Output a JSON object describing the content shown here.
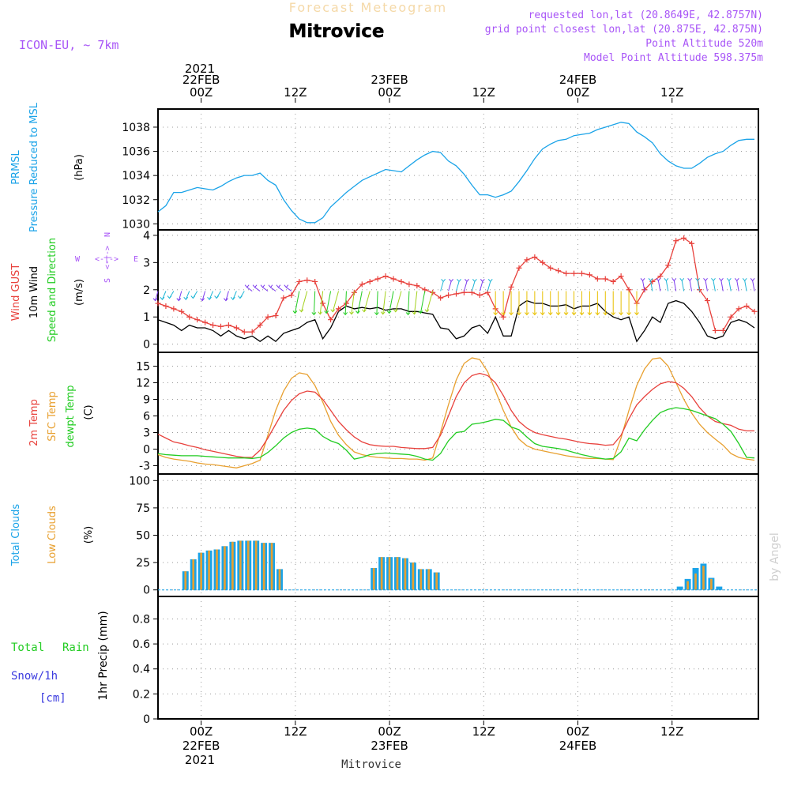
{
  "header": {
    "product": "Forecast Meteogram",
    "station": "Mitrovice",
    "model": "ICON-EU, ~ 7km",
    "requested": "requested lon,lat (20.8649E, 42.8757N)",
    "grid": "grid point closest lon,lat (20.875E, 42.875N)",
    "altitude": "Point Altitude 520m",
    "model_altitude": "Model Point Altitude 598.375m",
    "watermark": "by Angel",
    "footer": "Mitrovice"
  },
  "colors": {
    "pressure": "#1aa3e8",
    "gust": "#e8413c",
    "wind": "#000000",
    "temp2m": "#e8413c",
    "sfc": "#e8a030",
    "dewpt": "#22cc22",
    "total_clouds": "#1aa3e8",
    "low_clouds": "#e8a030",
    "header_purple": "#a855f7",
    "precip_green": "#22cc22",
    "precip_blue": "#3b3bdf"
  },
  "time_axis": {
    "top": {
      "year": "2021",
      "ticks": [
        {
          "t": 0,
          "label": "00Z",
          "date": "22FEB"
        },
        {
          "t": 12,
          "label": "12Z",
          "date": ""
        },
        {
          "t": 24,
          "label": "00Z",
          "date": "23FEB"
        },
        {
          "t": 36,
          "label": "12Z",
          "date": ""
        },
        {
          "t": 48,
          "label": "00Z",
          "date": "24FEB"
        },
        {
          "t": 60,
          "label": "12Z",
          "date": ""
        }
      ]
    },
    "bottom": {
      "year": "2021",
      "ticks": [
        {
          "t": 0,
          "label": "00Z",
          "date": "22FEB"
        },
        {
          "t": 12,
          "label": "12Z",
          "date": ""
        },
        {
          "t": 24,
          "label": "00Z",
          "date": "23FEB"
        },
        {
          "t": 36,
          "label": "12Z",
          "date": ""
        },
        {
          "t": 48,
          "label": "00Z",
          "date": "24FEB"
        },
        {
          "t": 60,
          "label": "12Z",
          "date": ""
        }
      ]
    },
    "range_hours": [
      -5.5,
      71
    ]
  },
  "chart_data": [
    {
      "type": "line",
      "panel": "pressure",
      "labels": {
        "line1": "PRMSL",
        "line2": "Pressure Reduced to MSL",
        "unit": "(hPa)"
      },
      "ylim": [
        1029.5,
        1039.5
      ],
      "yticks": [
        1030,
        1032,
        1034,
        1036,
        1038
      ],
      "series": [
        {
          "name": "PRMSL",
          "x": [
            -5.5,
            -4.5,
            -3.5,
            -2.5,
            -1.5,
            -0.5,
            0.5,
            1.5,
            2.5,
            3.5,
            4.5,
            5.5,
            6.5,
            7.5,
            8.5,
            9.5,
            10.5,
            11.5,
            12.5,
            13.5,
            14.5,
            15.5,
            16.5,
            17.5,
            18.5,
            19.5,
            20.5,
            21.5,
            22.5,
            23.5,
            24.5,
            25.5,
            26.5,
            27.5,
            28.5,
            29.5,
            30.5,
            31.5,
            32.5,
            33.5,
            34.5,
            35.5,
            36.5,
            37.5,
            38.5,
            39.5,
            40.5,
            41.5,
            42.5,
            43.5,
            44.5,
            45.5,
            46.5,
            47.5,
            48.5,
            49.5,
            50.5,
            51.5,
            52.5,
            53.5,
            54.5,
            55.5,
            56.5,
            57.5,
            58.5,
            59.5,
            60.5,
            61.5,
            62.5,
            63.5,
            64.5,
            65.5,
            66.5,
            67.5,
            68.5,
            69.5,
            70.5
          ],
          "y": [
            1031.0,
            1031.5,
            1032.6,
            1032.6,
            1032.8,
            1033.0,
            1032.9,
            1032.8,
            1033.1,
            1033.5,
            1033.8,
            1034.0,
            1034.0,
            1034.2,
            1033.6,
            1033.2,
            1032.0,
            1031.1,
            1030.4,
            1030.1,
            1030.1,
            1030.5,
            1031.4,
            1032.0,
            1032.6,
            1033.1,
            1033.6,
            1033.9,
            1034.2,
            1034.5,
            1034.4,
            1034.3,
            1034.8,
            1035.3,
            1035.7,
            1036.0,
            1035.9,
            1035.2,
            1034.8,
            1034.1,
            1033.2,
            1032.4,
            1032.4,
            1032.2,
            1032.4,
            1032.7,
            1033.5,
            1034.4,
            1035.4,
            1036.2,
            1036.6,
            1036.9,
            1037.0,
            1037.3,
            1037.4,
            1037.5,
            1037.8,
            1038.0,
            1038.2,
            1038.4,
            1038.3,
            1037.6,
            1037.2,
            1036.7,
            1035.8,
            1035.2,
            1034.8,
            1034.6,
            1034.6,
            1035.0,
            1035.5,
            1035.8,
            1036.0,
            1036.5,
            1036.9,
            1037.0,
            1037.0
          ]
        }
      ]
    },
    {
      "type": "line",
      "panel": "wind",
      "labels": {
        "gust": "Wind GUST",
        "wind": "10m Wind",
        "dir": "Speed and Direction",
        "unit": "(m/s)",
        "compass_n": "N",
        "compass_s": "S",
        "compass_w": "W",
        "compass_e": "E",
        "compass_mid": "<-|->"
      },
      "ylim": [
        -0.3,
        4.2
      ],
      "yticks": [
        0,
        1,
        2,
        3,
        4
      ],
      "x": [
        -5.5,
        -4.5,
        -3.5,
        -2.5,
        -1.5,
        -0.5,
        0.5,
        1.5,
        2.5,
        3.5,
        4.5,
        5.5,
        6.5,
        7.5,
        8.5,
        9.5,
        10.5,
        11.5,
        12.5,
        13.5,
        14.5,
        15.5,
        16.5,
        17.5,
        18.5,
        19.5,
        20.5,
        21.5,
        22.5,
        23.5,
        24.5,
        25.5,
        26.5,
        27.5,
        28.5,
        29.5,
        30.5,
        31.5,
        32.5,
        33.5,
        34.5,
        35.5,
        36.5,
        37.5,
        38.5,
        39.5,
        40.5,
        41.5,
        42.5,
        43.5,
        44.5,
        45.5,
        46.5,
        47.5,
        48.5,
        49.5,
        50.5,
        51.5,
        52.5,
        53.5,
        54.5,
        55.5,
        56.5,
        57.5,
        58.5,
        59.5,
        60.5,
        61.5,
        62.5,
        63.5,
        64.5,
        65.5,
        66.5,
        67.5,
        68.5,
        69.5,
        70.5
      ],
      "series": [
        {
          "name": "Wind GUST",
          "y": [
            1.5,
            1.4,
            1.3,
            1.2,
            1.0,
            0.9,
            0.8,
            0.7,
            0.65,
            0.7,
            0.6,
            0.45,
            0.45,
            0.7,
            1.0,
            1.05,
            1.7,
            1.8,
            2.3,
            2.35,
            2.3,
            1.5,
            0.9,
            1.3,
            1.5,
            1.9,
            2.2,
            2.3,
            2.4,
            2.5,
            2.4,
            2.3,
            2.2,
            2.15,
            2.0,
            1.9,
            1.7,
            1.8,
            1.85,
            1.9,
            1.9,
            1.8,
            1.9,
            1.3,
            1.0,
            2.1,
            2.8,
            3.1,
            3.2,
            3.0,
            2.8,
            2.7,
            2.6,
            2.6,
            2.6,
            2.55,
            2.4,
            2.4,
            2.3,
            2.5,
            2.0,
            1.5,
            2.0,
            2.3,
            2.5,
            2.9,
            3.8,
            3.9,
            3.7,
            2.0,
            1.6,
            0.5,
            0.5,
            1.0,
            1.3,
            1.4,
            1.2
          ]
        },
        {
          "name": "10m Wind",
          "y": [
            0.9,
            0.8,
            0.7,
            0.5,
            0.7,
            0.6,
            0.6,
            0.5,
            0.3,
            0.5,
            0.3,
            0.2,
            0.3,
            0.1,
            0.3,
            0.1,
            0.4,
            0.5,
            0.6,
            0.8,
            0.9,
            0.2,
            0.6,
            1.2,
            1.4,
            1.3,
            1.35,
            1.3,
            1.35,
            1.25,
            1.3,
            1.3,
            1.2,
            1.2,
            1.15,
            1.1,
            0.6,
            0.55,
            0.2,
            0.3,
            0.6,
            0.7,
            0.4,
            1.0,
            0.3,
            0.3,
            1.4,
            1.6,
            1.5,
            1.5,
            1.4,
            1.4,
            1.45,
            1.3,
            1.4,
            1.4,
            1.5,
            1.2,
            1.0,
            0.9,
            1.0,
            0.1,
            0.5,
            1.0,
            0.8,
            1.5,
            1.6,
            1.5,
            1.2,
            0.8,
            0.3,
            0.2,
            0.3,
            0.8,
            0.9,
            0.8,
            0.6
          ]
        }
      ]
    },
    {
      "type": "line",
      "panel": "temperature",
      "labels": {
        "t2m": "2m Temp",
        "sfc": "SFC Temp",
        "dewpt": "dewpt Temp",
        "unit": "(C)"
      },
      "ylim": [
        -4.5,
        17.5
      ],
      "yticks": [
        -3,
        0,
        3,
        6,
        9,
        12,
        15
      ],
      "x": [
        -5.5,
        -4.5,
        -3.5,
        -2.5,
        -1.5,
        -0.5,
        0.5,
        1.5,
        2.5,
        3.5,
        4.5,
        5.5,
        6.5,
        7.5,
        8.5,
        9.5,
        10.5,
        11.5,
        12.5,
        13.5,
        14.5,
        15.5,
        16.5,
        17.5,
        18.5,
        19.5,
        20.5,
        21.5,
        22.5,
        23.5,
        24.5,
        25.5,
        26.5,
        27.5,
        28.5,
        29.5,
        30.5,
        31.5,
        32.5,
        33.5,
        34.5,
        35.5,
        36.5,
        37.5,
        38.5,
        39.5,
        40.5,
        41.5,
        42.5,
        43.5,
        44.5,
        45.5,
        46.5,
        47.5,
        48.5,
        49.5,
        50.5,
        51.5,
        52.5,
        53.5,
        54.5,
        55.5,
        56.5,
        57.5,
        58.5,
        59.5,
        60.5,
        61.5,
        62.5,
        63.5,
        64.5,
        65.5,
        66.5,
        67.5,
        68.5,
        69.5,
        70.5
      ],
      "series": [
        {
          "name": "2m Temp",
          "y": [
            2.7,
            2.0,
            1.3,
            1.0,
            0.6,
            0.3,
            -0.1,
            -0.4,
            -0.7,
            -1.0,
            -1.3,
            -1.5,
            -1.5,
            -0.2,
            2.0,
            4.5,
            7.0,
            8.8,
            10.0,
            10.5,
            10.3,
            9.0,
            7.0,
            5.0,
            3.5,
            2.2,
            1.3,
            0.8,
            0.6,
            0.5,
            0.5,
            0.3,
            0.2,
            0.1,
            0.1,
            0.3,
            2.5,
            6.0,
            9.5,
            12.0,
            13.3,
            13.7,
            13.3,
            12.0,
            9.7,
            7.0,
            5.0,
            3.8,
            3.0,
            2.6,
            2.3,
            2.0,
            1.8,
            1.5,
            1.2,
            1.0,
            0.9,
            0.7,
            0.8,
            2.5,
            5.5,
            8.0,
            9.5,
            10.8,
            11.8,
            12.2,
            12.0,
            11.0,
            9.5,
            7.5,
            6.0,
            5.0,
            4.6,
            4.3,
            3.6,
            3.3,
            3.3
          ]
        },
        {
          "name": "SFC Temp",
          "y": [
            -1.0,
            -1.5,
            -1.8,
            -2.0,
            -2.2,
            -2.5,
            -2.7,
            -2.8,
            -3.0,
            -3.2,
            -3.4,
            -3.0,
            -2.6,
            -2.0,
            2.5,
            7.0,
            10.5,
            12.8,
            13.8,
            13.5,
            11.5,
            8.5,
            5.0,
            2.5,
            0.8,
            -0.5,
            -1.0,
            -1.3,
            -1.5,
            -1.6,
            -1.7,
            -1.7,
            -1.8,
            -1.8,
            -2.0,
            -1.6,
            3.0,
            8.0,
            12.5,
            15.5,
            16.5,
            16.2,
            14.0,
            10.5,
            7.0,
            4.0,
            1.8,
            0.6,
            0.0,
            -0.3,
            -0.6,
            -0.9,
            -1.2,
            -1.4,
            -1.6,
            -1.7,
            -1.7,
            -1.8,
            -1.9,
            2.0,
            7.0,
            11.5,
            14.5,
            16.3,
            16.5,
            15.0,
            12.0,
            9.0,
            6.5,
            4.5,
            3.0,
            1.8,
            0.7,
            -0.8,
            -1.5,
            -1.8,
            -2.0
          ]
        },
        {
          "name": "dewpt Temp",
          "y": [
            -0.8,
            -1.0,
            -1.1,
            -1.2,
            -1.2,
            -1.2,
            -1.3,
            -1.4,
            -1.5,
            -1.6,
            -1.6,
            -1.6,
            -1.7,
            -1.5,
            -0.6,
            0.6,
            2.0,
            3.0,
            3.6,
            3.8,
            3.6,
            2.3,
            1.5,
            1.0,
            -0.2,
            -1.8,
            -1.5,
            -1.0,
            -0.8,
            -0.7,
            -0.8,
            -0.9,
            -1.0,
            -1.3,
            -1.8,
            -2.0,
            -0.8,
            1.5,
            3.0,
            3.2,
            4.5,
            4.7,
            5.0,
            5.4,
            5.2,
            4.0,
            3.5,
            2.2,
            1.0,
            0.5,
            0.3,
            0.1,
            -0.2,
            -0.6,
            -1.0,
            -1.3,
            -1.6,
            -1.8,
            -1.7,
            -0.5,
            2.0,
            1.5,
            3.5,
            5.2,
            6.6,
            7.2,
            7.5,
            7.3,
            7.0,
            6.5,
            6.0,
            5.5,
            4.5,
            3.2,
            1.0,
            -1.5,
            -1.6
          ]
        }
      ]
    },
    {
      "type": "bar",
      "panel": "clouds",
      "labels": {
        "total": "Total Clouds",
        "low": "Low Clouds",
        "unit": "(%)"
      },
      "ylim": [
        -6,
        106
      ],
      "yticks": [
        0,
        25,
        50,
        75,
        100
      ],
      "x": [
        -2,
        -1,
        0,
        1,
        2,
        3,
        4,
        5,
        6,
        7,
        8,
        9,
        10,
        22,
        23,
        24,
        25,
        26,
        27,
        28,
        29,
        30,
        61,
        62,
        63,
        64,
        65,
        66
      ],
      "series": [
        {
          "name": "Total Clouds",
          "values": [
            17,
            28,
            34,
            36,
            37,
            40,
            44,
            45,
            45,
            45,
            43,
            43,
            19,
            20,
            30,
            30,
            30,
            29,
            25,
            19,
            19,
            16,
            3,
            10,
            20,
            24,
            11,
            3
          ]
        },
        {
          "name": "Low Clouds",
          "values": [
            17,
            28,
            34,
            36,
            37,
            40,
            44,
            45,
            45,
            45,
            43,
            43,
            19,
            20,
            30,
            30,
            30,
            29,
            25,
            19,
            19,
            16,
            0,
            8,
            15,
            22,
            10,
            0
          ]
        }
      ]
    },
    {
      "type": "bar",
      "panel": "precip",
      "labels": {
        "total": "Total",
        "rain": "Rain",
        "snow": "Snow/1h",
        "cm": "[cm]",
        "unit": "1hr Precip (mm)"
      },
      "ylim": [
        0,
        0.98
      ],
      "yticks": [
        0,
        0.2,
        0.4,
        0.6,
        0.8
      ],
      "ytick_labels": [
        "0",
        "0.2",
        "0.4",
        "0.6",
        "0.8"
      ],
      "x": [],
      "series": [
        {
          "name": "Total",
          "values": []
        }
      ]
    }
  ]
}
